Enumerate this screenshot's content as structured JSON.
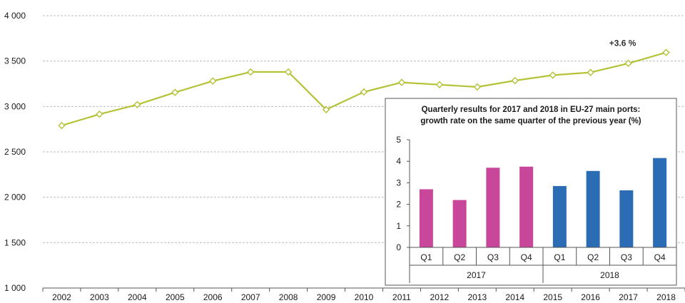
{
  "chart_data": [
    {
      "type": "line",
      "x": [
        "2002",
        "2003",
        "2004",
        "2005",
        "2006",
        "2007",
        "2008",
        "2009",
        "2010",
        "2011",
        "2012",
        "2013",
        "2014",
        "2015",
        "2016",
        "2017",
        "2018"
      ],
      "series": [
        {
          "values": [
            2790,
            2915,
            3020,
            3155,
            3280,
            3380,
            3380,
            2965,
            3160,
            3265,
            3240,
            3215,
            3285,
            3345,
            3375,
            3475,
            3595
          ]
        }
      ],
      "yticks": [
        "1 000",
        "1 500",
        "2 000",
        "2 500",
        "3 000",
        "3 500",
        "4 000"
      ],
      "ylim": [
        1000,
        4000
      ],
      "grid": true,
      "annotation": "+3.6 %",
      "colors": {
        "line": "#b5c236",
        "marker_fill": "#ffffff",
        "grid": "#bdbdbd",
        "axis": "#555555"
      }
    },
    {
      "type": "bar",
      "title": [
        "Quarterly results for 2017 and 2018 in EU-27 main ports:",
        "growth rate on the same quarter of the previous year (%)"
      ],
      "groups": [
        {
          "label": "2017",
          "categories": [
            "Q1",
            "Q2",
            "Q3",
            "Q4"
          ],
          "values": [
            2.7,
            2.2,
            3.7,
            3.75
          ],
          "color": "#c8479b"
        },
        {
          "label": "2018",
          "categories": [
            "Q1",
            "Q2",
            "Q3",
            "Q4"
          ],
          "values": [
            2.85,
            3.55,
            2.65,
            4.15
          ],
          "color": "#2c6cb4"
        }
      ],
      "yticks": [
        "0",
        "1",
        "2",
        "3",
        "4",
        "5"
      ],
      "ylim": [
        0,
        5
      ]
    }
  ]
}
